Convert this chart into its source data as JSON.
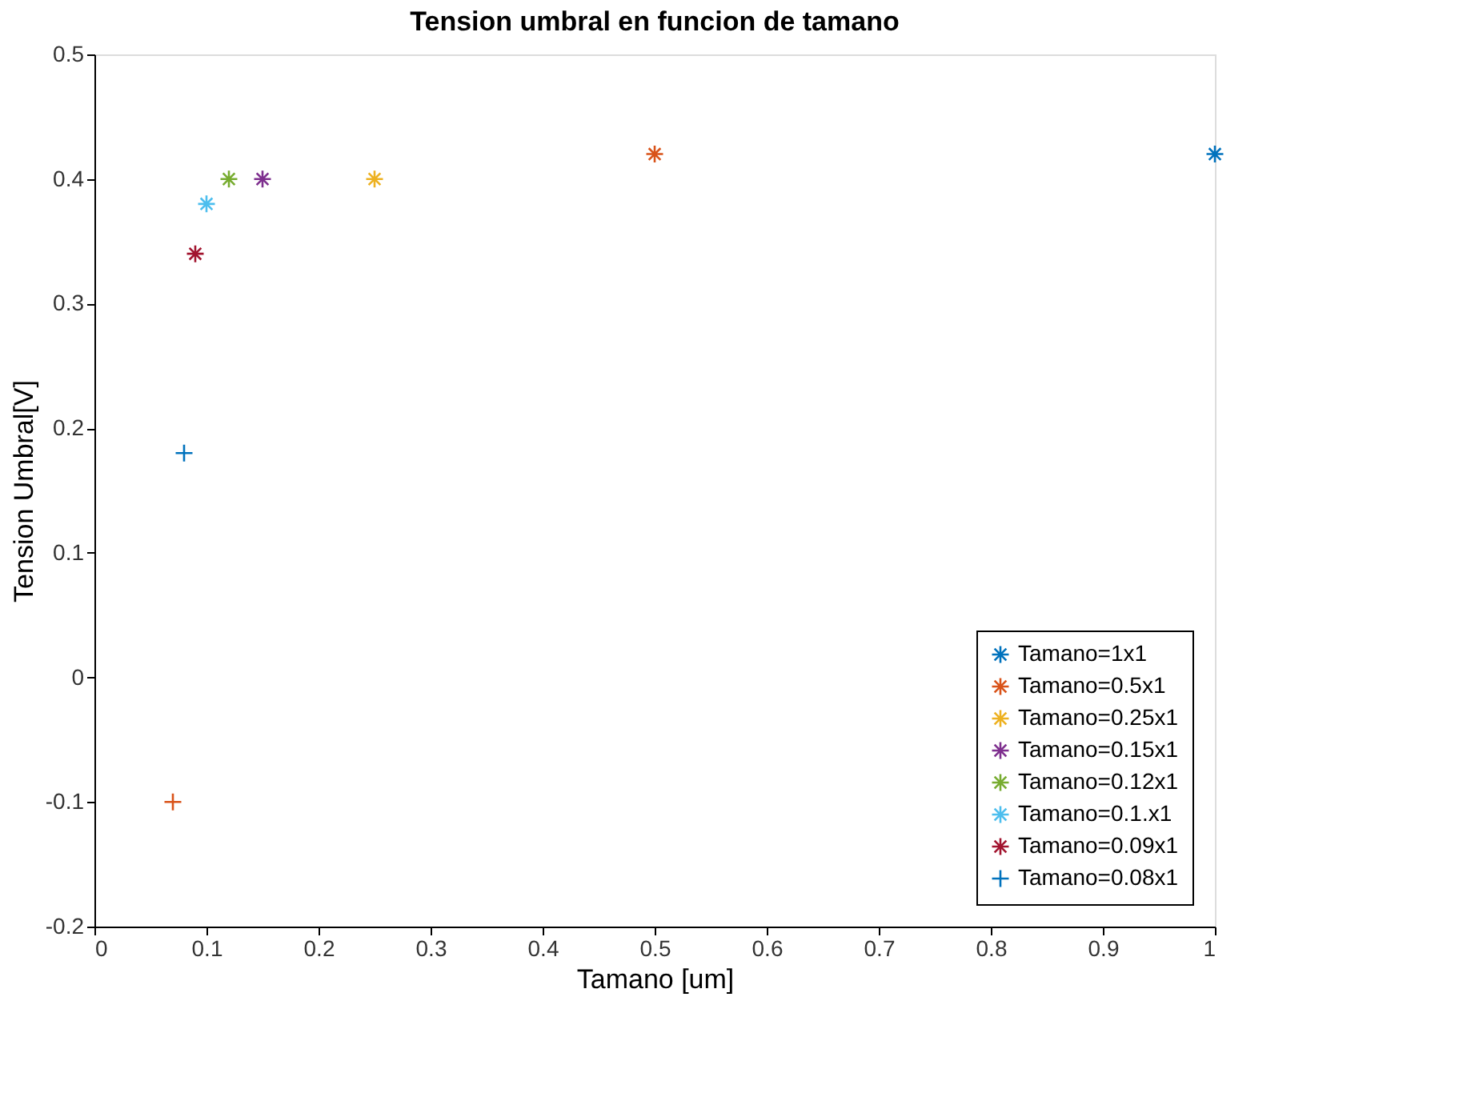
{
  "chart_data": {
    "type": "scatter",
    "title": "Tension umbral en funcion de tamano",
    "xlabel": "Tamano [um]",
    "ylabel": "Tension Umbral[V]",
    "series": [
      {
        "name": "Tamano=1x1",
        "color": "#0072bd",
        "x": [
          1.0
        ],
        "values": [
          0.42
        ]
      },
      {
        "name": "Tamano=0.5x1",
        "color": "#d95319",
        "x": [
          0.5
        ],
        "values": [
          0.42
        ]
      },
      {
        "name": "Tamano=0.25x1",
        "color": "#edb120",
        "x": [
          0.25
        ],
        "values": [
          0.4
        ]
      },
      {
        "name": "Tamano=0.15x1",
        "color": "#7e2f8e",
        "x": [
          0.15
        ],
        "values": [
          0.4
        ]
      },
      {
        "name": "Tamano=0.12x1",
        "color": "#77ac30",
        "x": [
          0.12
        ],
        "values": [
          0.4
        ]
      },
      {
        "name": "Tamano=0.1.x1",
        "color": "#4dbeee",
        "x": [
          0.1
        ],
        "values": [
          0.38
        ]
      },
      {
        "name": "Tamano=0.09x1",
        "color": "#a2142f",
        "x": [
          0.09
        ],
        "values": [
          0.34
        ]
      },
      {
        "name": "Tamano=0.08x1",
        "color": "#0072bd",
        "marker": "cross",
        "x": [
          0.08
        ],
        "values": [
          0.18
        ]
      },
      {
        "color": "#d95319",
        "marker": "cross",
        "x": [
          0.07
        ],
        "values": [
          -0.1
        ]
      }
    ],
    "xlim": [
      0,
      1
    ],
    "xticks": [
      0,
      0.1,
      0.2,
      0.3,
      0.4,
      0.5,
      0.6,
      0.7,
      0.8,
      0.9,
      1
    ],
    "ylim": [
      -0.2,
      0.5
    ],
    "yticks": [
      -0.2,
      -0.1,
      0,
      0.1,
      0.2,
      0.3,
      0.4,
      0.5
    ],
    "grid": false,
    "legend": "bottom right"
  }
}
